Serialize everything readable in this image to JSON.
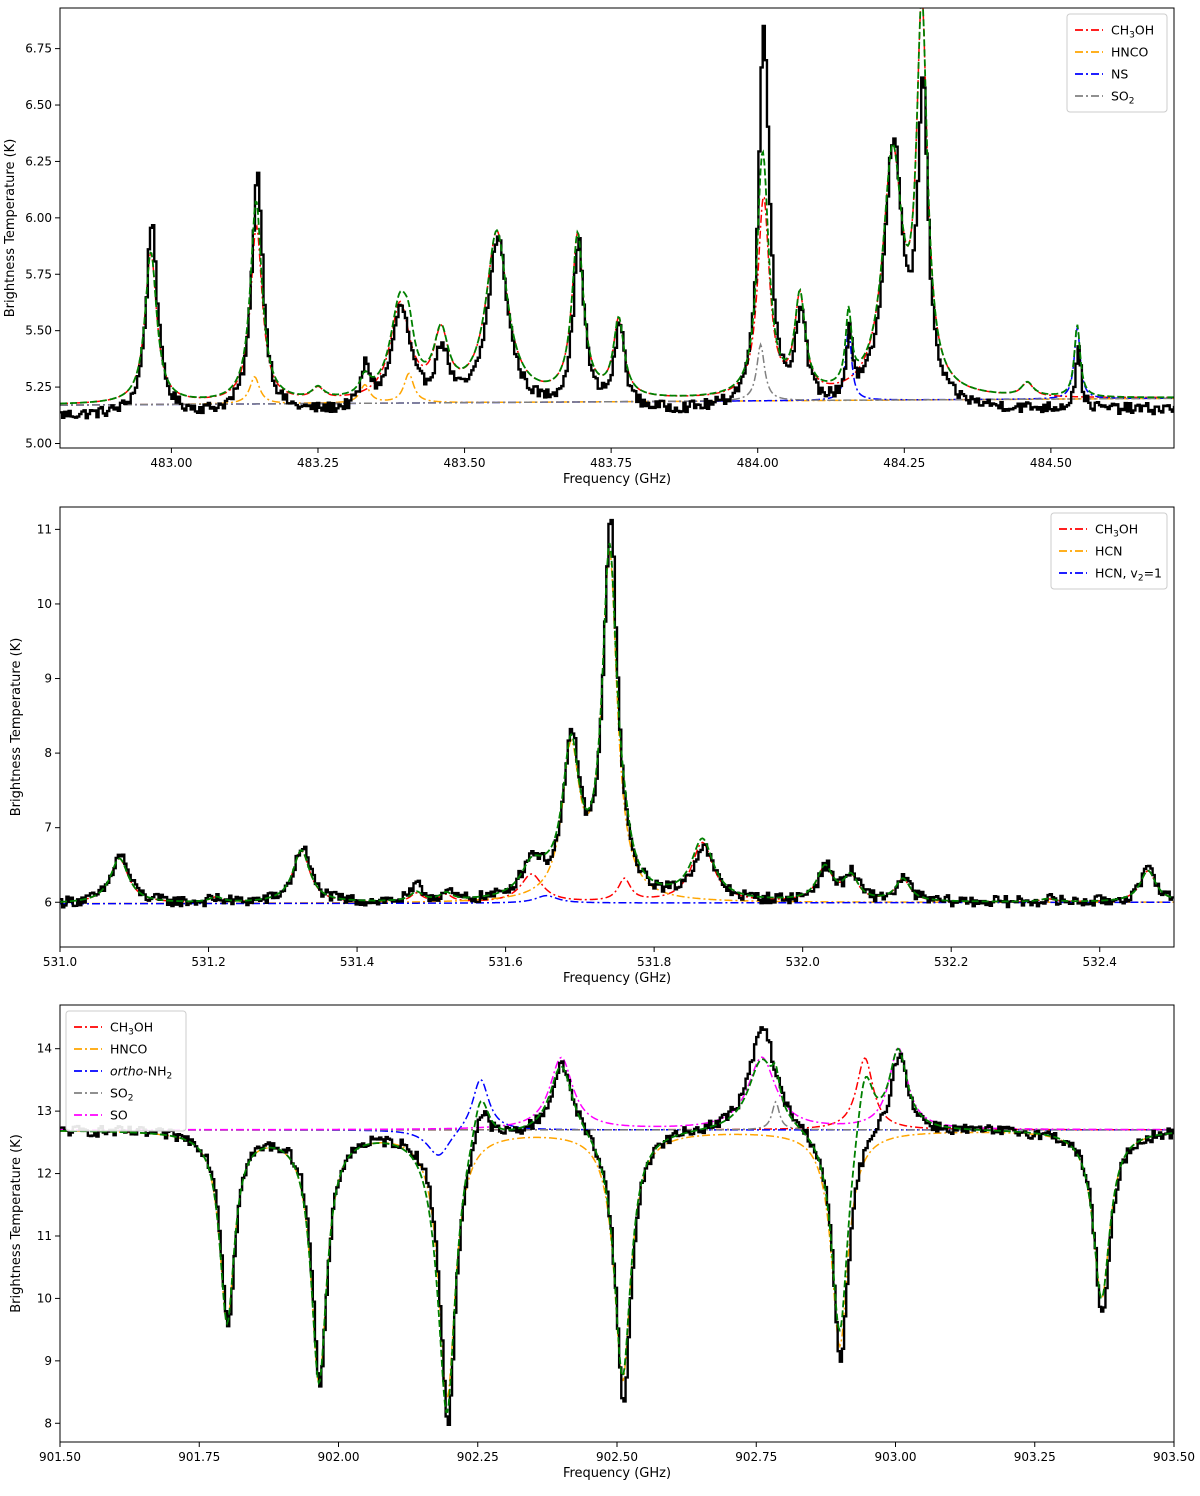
{
  "chart_data": [
    {
      "type": "line",
      "xlabel": "Frequency (GHz)",
      "ylabel": "Brightness Temperature (K)",
      "xlim": [
        482.81,
        484.71
      ],
      "ylim": [
        4.98,
        6.93
      ],
      "xticks": [
        483.0,
        483.25,
        483.5,
        483.75,
        484.0,
        484.25,
        484.5
      ],
      "xtick_labels": [
        "483.00",
        "483.25",
        "483.50",
        "483.75",
        "484.00",
        "484.25",
        "484.50"
      ],
      "yticks": [
        5.0,
        5.25,
        5.5,
        5.75,
        6.0,
        6.25,
        6.5,
        6.75
      ],
      "ytick_labels": [
        "5.00",
        "5.25",
        "5.50",
        "5.75",
        "6.00",
        "6.25",
        "6.50",
        "6.75"
      ],
      "legend_position": "top-right",
      "legend_entries": [
        {
          "label": "CH3OH",
          "main": "CH",
          "sub": "3",
          "rest": "OH",
          "color": "#ff0000"
        },
        {
          "label": "HNCO",
          "main": "HNCO",
          "sub": "",
          "rest": "",
          "color": "#ffa500"
        },
        {
          "label": "NS",
          "main": "NS",
          "sub": "",
          "rest": "",
          "color": "#0000ff"
        },
        {
          "label": "SO2",
          "main": "SO",
          "sub": "2",
          "rest": "",
          "color": "#808080"
        }
      ],
      "baseline_start": 5.17,
      "baseline_end": 5.2,
      "observed_baseline": 5.12,
      "model_color": "#008000",
      "observed_color": "#000000",
      "lines": [
        {
          "center": 482.965,
          "peak": 0.67,
          "width": 0.012,
          "species": "CH3OH",
          "obs": 0.86
        },
        {
          "center": 483.145,
          "peak": 0.78,
          "width": 0.012,
          "species": "CH3OH",
          "obs": 1.07
        },
        {
          "center": 483.142,
          "peak": 0.12,
          "width": 0.01,
          "species": "HNCO",
          "obs": 0
        },
        {
          "center": 483.25,
          "peak": 0.05,
          "width": 0.012,
          "species": "CH3OH",
          "obs": 0.0
        },
        {
          "center": 483.33,
          "peak": 0.08,
          "width": 0.01,
          "species": "HNCO",
          "obs": 0.18
        },
        {
          "center": 483.39,
          "peak": 0.42,
          "width": 0.02,
          "species": "CH3OH",
          "obs": 0.45
        },
        {
          "center": 483.405,
          "peak": 0.13,
          "width": 0.01,
          "species": "HNCO",
          "obs": 0
        },
        {
          "center": 483.46,
          "peak": 0.27,
          "width": 0.015,
          "species": "CH3OH",
          "obs": 0.25
        },
        {
          "center": 483.555,
          "peak": 0.74,
          "width": 0.022,
          "species": "CH3OH",
          "obs": 0.76
        },
        {
          "center": 483.693,
          "peak": 0.72,
          "width": 0.012,
          "species": "CH3OH",
          "obs": 0.73
        },
        {
          "center": 483.763,
          "peak": 0.34,
          "width": 0.011,
          "species": "CH3OH",
          "obs": 0.37
        },
        {
          "center": 484.005,
          "peak": 0.25,
          "width": 0.008,
          "species": "SO2",
          "obs": 0.35
        },
        {
          "center": 484.01,
          "peak": 0.88,
          "width": 0.012,
          "species": "CH3OH",
          "obs": 1.4
        },
        {
          "center": 484.072,
          "peak": 0.43,
          "width": 0.011,
          "species": "CH3OH",
          "obs": 0.42
        },
        {
          "center": 484.155,
          "peak": 0.32,
          "width": 0.006,
          "species": "NS",
          "obs": 0.3
        },
        {
          "center": 484.23,
          "peak": 1.05,
          "width": 0.02,
          "species": "CH3OH",
          "obs": 1.15
        },
        {
          "center": 484.28,
          "peak": 1.65,
          "width": 0.011,
          "species": "CH3OH",
          "obs": 1.35
        },
        {
          "center": 484.46,
          "peak": 0.06,
          "width": 0.012,
          "species": "CH3OH",
          "obs": 0
        },
        {
          "center": 484.545,
          "peak": 0.32,
          "width": 0.006,
          "species": "NS",
          "obs": 0.27
        }
      ]
    },
    {
      "type": "line",
      "xlabel": "Frequency (GHz)",
      "ylabel": "Brightness Temperature (K)",
      "xlim": [
        531.0,
        532.5
      ],
      "ylim": [
        5.4,
        11.3
      ],
      "xticks": [
        531.0,
        531.2,
        531.4,
        531.6,
        531.8,
        532.0,
        532.2,
        532.4
      ],
      "xtick_labels": [
        "531.0",
        "531.2",
        "531.4",
        "531.6",
        "531.8",
        "532.0",
        "532.2",
        "532.4"
      ],
      "yticks": [
        6,
        7,
        8,
        9,
        10,
        11
      ],
      "ytick_labels": [
        "6",
        "7",
        "8",
        "9",
        "10",
        "11"
      ],
      "legend_position": "top-right",
      "legend_entries": [
        {
          "label": "CH3OH",
          "main": "CH",
          "sub": "3",
          "rest": "OH",
          "color": "#ff0000"
        },
        {
          "label": "HCN",
          "main": "HCN",
          "sub": "",
          "rest": "",
          "color": "#ffa500"
        },
        {
          "label": "HCN, v2=1",
          "main": "HCN, v",
          "sub": "2",
          "rest": "=1",
          "color": "#0000ff"
        }
      ],
      "baseline_start": 5.98,
      "baseline_end": 6.0,
      "observed_baseline": 5.98,
      "model_color": "#008000",
      "observed_color": "#000000",
      "lines": [
        {
          "center": 531.08,
          "peak": 0.6,
          "width": 0.015,
          "species": "CH3OH",
          "obs": 0.65
        },
        {
          "center": 531.21,
          "peak": 0.07,
          "width": 0.01,
          "species": "CH3OH",
          "obs": 0.05
        },
        {
          "center": 531.325,
          "peak": 0.7,
          "width": 0.014,
          "species": "CH3OH",
          "obs": 0.75
        },
        {
          "center": 531.48,
          "peak": 0.12,
          "width": 0.01,
          "species": "CH3OH",
          "obs": 0.2
        },
        {
          "center": 531.52,
          "peak": 0.1,
          "width": 0.01,
          "species": "CH3OH",
          "obs": 0.1
        },
        {
          "center": 531.635,
          "peak": 0.38,
          "width": 0.018,
          "species": "CH3OH",
          "obs": 0.5
        },
        {
          "center": 531.655,
          "peak": 0.1,
          "width": 0.018,
          "species": "HCN, v2=1",
          "obs": 0
        },
        {
          "center": 531.688,
          "peak": 1.95,
          "width": 0.014,
          "species": "HCN",
          "obs": 2.05
        },
        {
          "center": 531.74,
          "peak": 4.6,
          "width": 0.012,
          "species": "HCN",
          "obs": 5.05
        },
        {
          "center": 531.76,
          "peak": 0.3,
          "width": 0.01,
          "species": "CH3OH",
          "obs": 0
        },
        {
          "center": 531.865,
          "peak": 0.8,
          "width": 0.018,
          "species": "CH3OH",
          "obs": 0.7
        },
        {
          "center": 532.03,
          "peak": 0.45,
          "width": 0.013,
          "species": "CH3OH",
          "obs": 0.45
        },
        {
          "center": 532.065,
          "peak": 0.32,
          "width": 0.012,
          "species": "CH3OH",
          "obs": 0.35
        },
        {
          "center": 532.135,
          "peak": 0.3,
          "width": 0.012,
          "species": "CH3OH",
          "obs": 0.3
        },
        {
          "center": 532.33,
          "peak": 0.04,
          "width": 0.012,
          "species": "CH3OH",
          "obs": 0.03
        },
        {
          "center": 532.465,
          "peak": 0.42,
          "width": 0.013,
          "species": "CH3OH",
          "obs": 0.45
        }
      ]
    },
    {
      "type": "line",
      "xlabel": "Frequency (GHz)",
      "ylabel": "Brightness Temperature (K)",
      "xlim": [
        901.5,
        903.5
      ],
      "ylim": [
        7.7,
        14.7
      ],
      "xticks": [
        901.5,
        901.75,
        902.0,
        902.25,
        902.5,
        902.75,
        903.0,
        903.25,
        903.5
      ],
      "xtick_labels": [
        "901.50",
        "901.75",
        "902.00",
        "902.25",
        "902.50",
        "902.75",
        "903.00",
        "903.25",
        "903.50"
      ],
      "yticks": [
        8,
        9,
        10,
        11,
        12,
        13,
        14
      ],
      "ytick_labels": [
        "8",
        "9",
        "10",
        "11",
        "12",
        "13",
        "14"
      ],
      "legend_position": "top-left",
      "legend_entries": [
        {
          "label": "CH3OH",
          "main": "CH",
          "sub": "3",
          "rest": "OH",
          "color": "#ff0000"
        },
        {
          "label": "HNCO",
          "main": "HNCO",
          "sub": "",
          "rest": "",
          "color": "#ffa500"
        },
        {
          "label": "ortho-NH2",
          "main": "ortho-NH",
          "sub": "2",
          "rest": "",
          "color": "#0000ff",
          "italic_prefix": "ortho"
        },
        {
          "label": "SO2",
          "main": "SO",
          "sub": "2",
          "rest": "",
          "color": "#808080"
        },
        {
          "label": "SO",
          "main": "SO",
          "sub": "",
          "rest": "",
          "color": "#ff00ff"
        }
      ],
      "baseline_start": 12.7,
      "baseline_end": 12.7,
      "observed_baseline": 12.7,
      "model_color": "#008000",
      "observed_color": "#000000",
      "lines": [
        {
          "center": 901.8,
          "peak": -3.05,
          "width": 0.016,
          "species": "HNCO",
          "obs": -3.05
        },
        {
          "center": 901.965,
          "peak": -4.0,
          "width": 0.017,
          "species": "HNCO",
          "obs": -4.05
        },
        {
          "center": 902.195,
          "peak": -4.25,
          "width": 0.018,
          "species": "HNCO",
          "obs": -4.7
        },
        {
          "center": 902.18,
          "peak": -0.45,
          "width": 0.025,
          "species": "ortho-NH2",
          "obs": 0
        },
        {
          "center": 902.255,
          "peak": 0.85,
          "width": 0.018,
          "species": "ortho-NH2",
          "obs": 0.6
        },
        {
          "center": 902.4,
          "peak": 1.15,
          "width": 0.025,
          "species": "SO",
          "obs": 1.15
        },
        {
          "center": 902.51,
          "peak": -4.0,
          "width": 0.018,
          "species": "HNCO",
          "obs": -4.4
        },
        {
          "center": 902.76,
          "peak": 1.15,
          "width": 0.03,
          "species": "SO",
          "obs": 1.7
        },
        {
          "center": 902.785,
          "peak": 0.45,
          "width": 0.008,
          "species": "SO2",
          "obs": 0
        },
        {
          "center": 902.9,
          "peak": -3.45,
          "width": 0.018,
          "species": "HNCO",
          "obs": -3.8
        },
        {
          "center": 902.945,
          "peak": 1.15,
          "width": 0.018,
          "species": "CH3OH",
          "obs": 0
        },
        {
          "center": 903.005,
          "peak": 1.3,
          "width": 0.02,
          "species": "SO",
          "obs": 1.3
        },
        {
          "center": 903.37,
          "peak": -2.7,
          "width": 0.018,
          "species": "HNCO",
          "obs": -3.0
        }
      ]
    }
  ]
}
